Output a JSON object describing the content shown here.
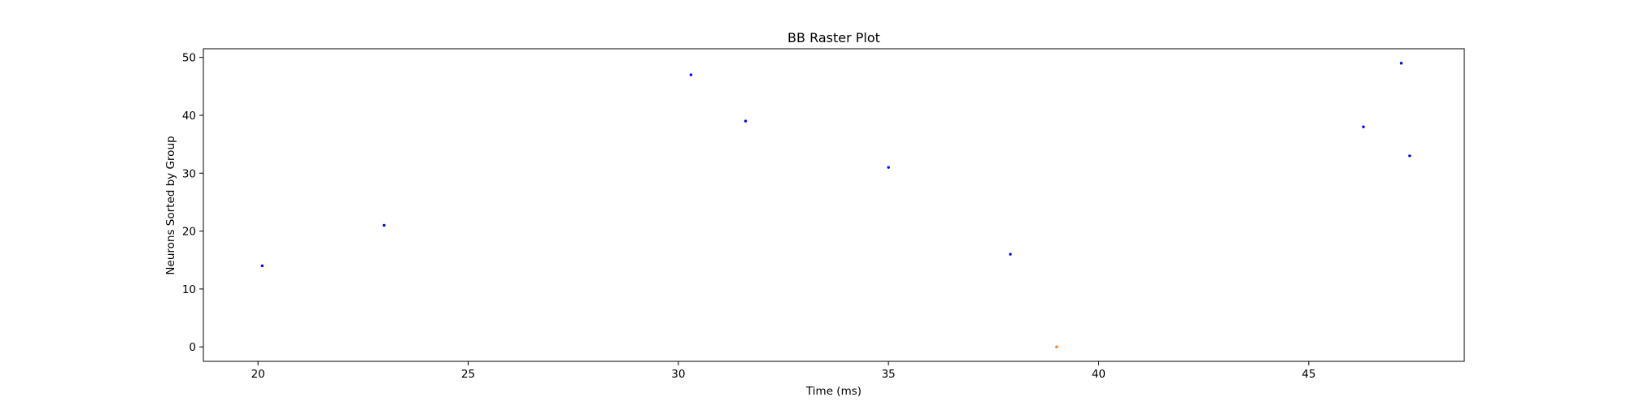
{
  "chart_data": {
    "type": "scatter",
    "title": "BB Raster Plot",
    "xlabel": "Time (ms)",
    "ylabel": "Neurons Sorted by Group",
    "xlim": [
      18.7,
      48.7
    ],
    "ylim": [
      -2.5,
      51.5
    ],
    "x_ticks": [
      20,
      25,
      30,
      35,
      40,
      45
    ],
    "y_ticks": [
      0,
      10,
      20,
      30,
      40,
      50
    ],
    "grid": false,
    "series": [
      {
        "color": "#0000ff",
        "points": [
          {
            "x": 20.1,
            "y": 14
          },
          {
            "x": 23.0,
            "y": 21
          },
          {
            "x": 30.3,
            "y": 47
          },
          {
            "x": 31.6,
            "y": 39
          },
          {
            "x": 35.0,
            "y": 31
          },
          {
            "x": 37.9,
            "y": 16
          },
          {
            "x": 46.3,
            "y": 38
          },
          {
            "x": 47.2,
            "y": 49
          },
          {
            "x": 47.4,
            "y": 33
          }
        ]
      },
      {
        "color": "#ff7f0e",
        "points": [
          {
            "x": 39.0,
            "y": 0
          }
        ]
      }
    ]
  }
}
